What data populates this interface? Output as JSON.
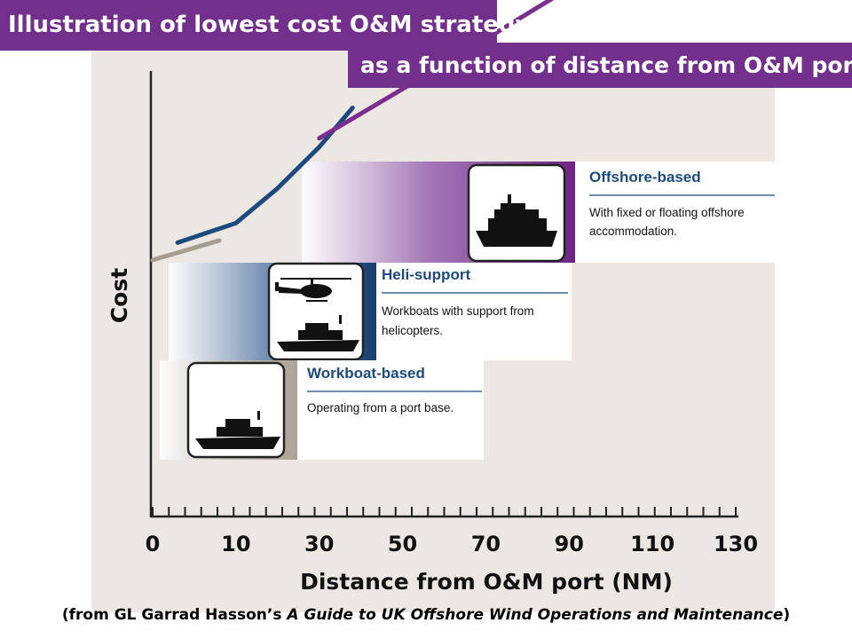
{
  "title": "Illustration of lowest cost O&M strategy",
  "subtitle": "as a function of distance from O&M port",
  "chart_data": {
    "type": "line",
    "xlabel": "Distance from O&M port (NM)",
    "ylabel": "Cost",
    "xlim": [
      0,
      130
    ],
    "x_ticks": [
      "0",
      "10",
      "30",
      "50",
      "70",
      "90",
      "110",
      "130"
    ],
    "series": [
      {
        "name": "Workboat-based",
        "color": "#a59c93",
        "x": [
          0,
          8
        ],
        "y": [
          2.0,
          2.9
        ]
      },
      {
        "name": "Heli-support",
        "color": "#1d4a7d",
        "x": [
          3,
          10,
          20,
          30,
          38
        ],
        "y": [
          2.8,
          3.7,
          5.3,
          7.2,
          9.0
        ]
      },
      {
        "name": "Offshore-based",
        "color": "#7a2e8e",
        "x": [
          30,
          60,
          90,
          130
        ],
        "y": [
          7.6,
          11.0,
          14.5,
          19.0
        ]
      }
    ],
    "annotations": [
      {
        "key": "offshore",
        "title": "Offshore-based",
        "text_line1": "With fixed or floating offshore",
        "text_line2": "accommodation.",
        "icon": "offshore-vessel-icon"
      },
      {
        "key": "heli",
        "title": "Heli-support",
        "text_line1": "Workboats with support from",
        "text_line2": "helicopters.",
        "icon": "helicopter-workboat-icon"
      },
      {
        "key": "workboat",
        "title": "Workboat-based",
        "text_line1": "Operating from a port base.",
        "text_line2": "",
        "icon": "workboat-icon"
      }
    ]
  },
  "footnote": {
    "prefix": "(from GL Garrad Hasson’s ",
    "italic": "A Guide to UK Offshore Wind Operations and Maintenance",
    "suffix": ")"
  },
  "colors": {
    "accent": "#722f8c",
    "heli": "#1d4a7d",
    "workboat": "#a59c93",
    "panel": "#ece7e2"
  }
}
